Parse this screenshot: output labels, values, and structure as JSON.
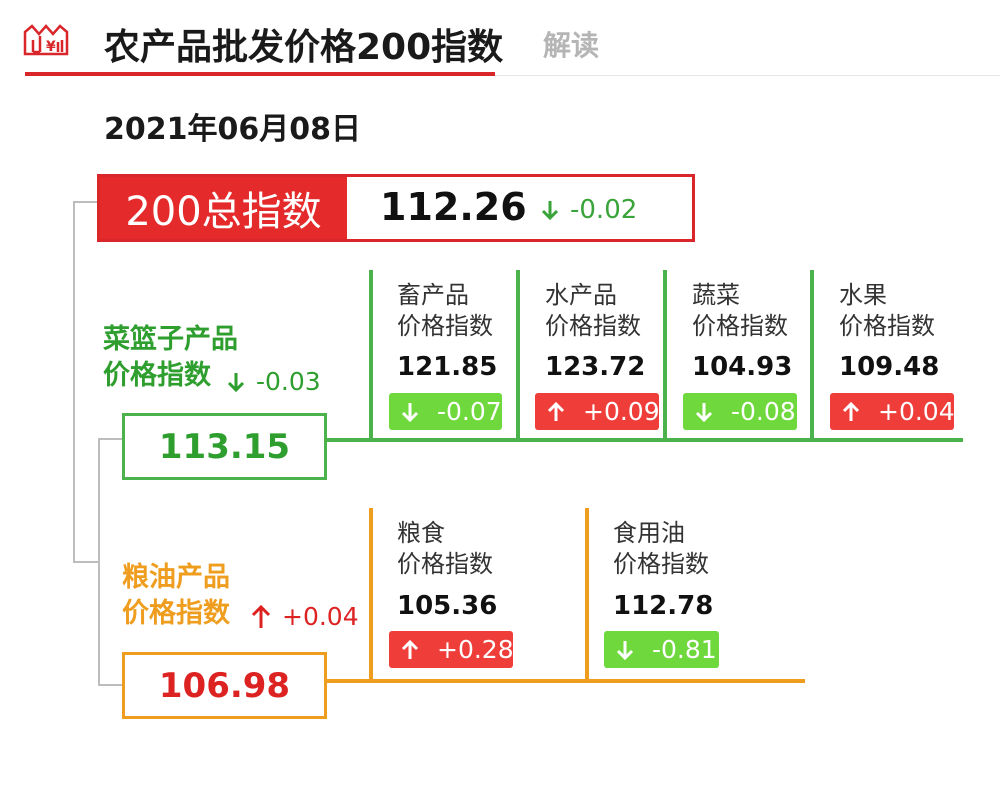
{
  "header": {
    "title": "农产品批发价格200指数",
    "tab_explain": "解读"
  },
  "date": "2021年06月08日",
  "total": {
    "label": "200总指数",
    "value": "112.26",
    "change": "-0.02",
    "direction": "down"
  },
  "vegetable_basket": {
    "title_line1": "菜篮子产品",
    "title_line2": "价格指数",
    "change": "-0.03",
    "direction": "down",
    "value": "113.15",
    "color": "#2e9e2e",
    "items": [
      {
        "name": "畜产品",
        "suffix": "价格指数",
        "value": "121.85",
        "change": "-0.07",
        "direction": "down"
      },
      {
        "name": "水产品",
        "suffix": "价格指数",
        "value": "123.72",
        "change": "+0.09",
        "direction": "up"
      },
      {
        "name": "蔬菜",
        "suffix": "价格指数",
        "value": "104.93",
        "change": "-0.08",
        "direction": "down"
      },
      {
        "name": "水果",
        "suffix": "价格指数",
        "value": "109.48",
        "change": "+0.04",
        "direction": "up"
      }
    ]
  },
  "grain_oil": {
    "title_line1": "粮油产品",
    "title_line2": "价格指数",
    "change": "+0.04",
    "direction": "up",
    "value": "106.98",
    "color": "#ef9d1e",
    "items": [
      {
        "name": "粮食",
        "suffix": "价格指数",
        "value": "105.36",
        "change": "+0.28",
        "direction": "up"
      },
      {
        "name": "食用油",
        "suffix": "价格指数",
        "value": "112.78",
        "change": "-0.81",
        "direction": "down"
      }
    ]
  },
  "colors": {
    "brand_red": "#d9262b",
    "up_red": "#ef3e3a",
    "down_green": "#6ed83d",
    "basket_green": "#2e9e2e",
    "grain_orange": "#ef9d1e"
  },
  "icons": {
    "logo": "price-chart-logo-icon",
    "up": "arrow-up-icon",
    "down": "arrow-down-icon"
  }
}
